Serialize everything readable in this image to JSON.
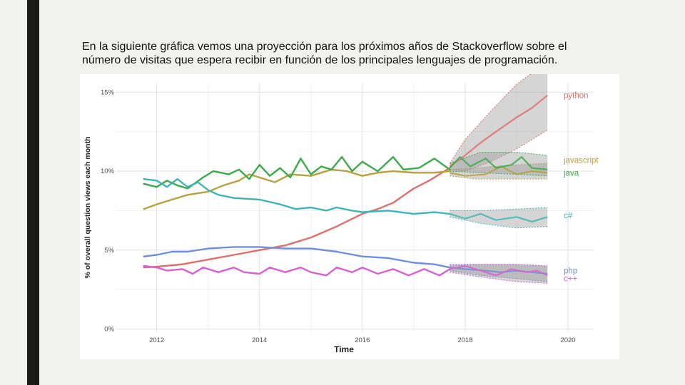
{
  "slide": {
    "text": "En la siguiente gráfica vemos una proyección para los próximos años de Stackoverflow sobre el número de visitas que espera recibir en función de los principales lenguajes de programación."
  },
  "chart_data": {
    "type": "line",
    "xlabel": "Time",
    "ylabel": "% of overall question views each month",
    "xlim": [
      2011.2,
      2020.5
    ],
    "ylim": [
      -0.2,
      15.6
    ],
    "x_ticks": [
      2012,
      2014,
      2016,
      2018,
      2020
    ],
    "x_tick_labels": [
      "2012",
      "2014",
      "2016",
      "2018",
      "2020"
    ],
    "y_ticks": [
      0,
      5,
      10,
      15
    ],
    "y_tick_labels": [
      "0%",
      "5%",
      "10%",
      "15%"
    ],
    "forecast_start": 2017.7,
    "series": [
      {
        "name": "python",
        "color": "#e06f6c",
        "points": [
          [
            2011.75,
            3.9
          ],
          [
            2012,
            3.95
          ],
          [
            2012.5,
            4.1
          ],
          [
            2013,
            4.4
          ],
          [
            2013.5,
            4.7
          ],
          [
            2014,
            5.0
          ],
          [
            2014.5,
            5.3
          ],
          [
            2015,
            5.8
          ],
          [
            2015.5,
            6.5
          ],
          [
            2016,
            7.3
          ],
          [
            2016.3,
            7.6
          ],
          [
            2016.6,
            8.0
          ],
          [
            2017,
            8.9
          ],
          [
            2017.3,
            9.4
          ],
          [
            2017.7,
            10.2
          ]
        ],
        "forecast": [
          [
            2017.7,
            10.3
          ],
          [
            2018,
            11.0
          ],
          [
            2018.3,
            11.8
          ],
          [
            2018.6,
            12.5
          ],
          [
            2019,
            13.4
          ],
          [
            2019.3,
            14.0
          ],
          [
            2019.6,
            14.8
          ]
        ],
        "band_low": [
          [
            2017.7,
            10.1
          ],
          [
            2018,
            10.0
          ],
          [
            2018.5,
            10.6
          ],
          [
            2019,
            11.4
          ],
          [
            2019.6,
            12.6
          ]
        ],
        "band_high": [
          [
            2017.7,
            10.5
          ],
          [
            2018,
            12.0
          ],
          [
            2018.5,
            13.8
          ],
          [
            2019,
            15.5
          ],
          [
            2019.6,
            16.9
          ]
        ]
      },
      {
        "name": "javascript",
        "color": "#b8a13e",
        "points": [
          [
            2011.75,
            7.6
          ],
          [
            2012,
            7.9
          ],
          [
            2012.3,
            8.2
          ],
          [
            2012.6,
            8.5
          ],
          [
            2013,
            8.7
          ],
          [
            2013.3,
            9.1
          ],
          [
            2013.6,
            9.4
          ],
          [
            2013.8,
            9.8
          ],
          [
            2014,
            9.6
          ],
          [
            2014.3,
            9.3
          ],
          [
            2014.6,
            9.8
          ],
          [
            2015,
            9.7
          ],
          [
            2015.4,
            10.1
          ],
          [
            2015.7,
            10.0
          ],
          [
            2016,
            9.7
          ],
          [
            2016.3,
            9.9
          ],
          [
            2016.6,
            10.0
          ],
          [
            2017,
            9.9
          ],
          [
            2017.4,
            9.9
          ],
          [
            2017.7,
            10.0
          ]
        ],
        "forecast": [
          [
            2017.7,
            9.9
          ],
          [
            2018,
            9.7
          ],
          [
            2018.4,
            9.8
          ],
          [
            2018.7,
            10.3
          ],
          [
            2019,
            9.8
          ],
          [
            2019.3,
            10.0
          ],
          [
            2019.6,
            9.9
          ]
        ],
        "band_low": [
          [
            2017.7,
            9.7
          ],
          [
            2018.2,
            9.5
          ],
          [
            2019,
            9.5
          ],
          [
            2019.6,
            9.5
          ]
        ],
        "band_high": [
          [
            2017.7,
            10.1
          ],
          [
            2018.2,
            10.2
          ],
          [
            2019,
            10.4
          ],
          [
            2019.6,
            10.5
          ]
        ]
      },
      {
        "name": "java",
        "color": "#3bab4a",
        "points": [
          [
            2011.75,
            9.2
          ],
          [
            2012,
            9.0
          ],
          [
            2012.2,
            9.4
          ],
          [
            2012.4,
            9.1
          ],
          [
            2012.6,
            8.9
          ],
          [
            2012.9,
            9.6
          ],
          [
            2013.1,
            10.0
          ],
          [
            2013.4,
            9.8
          ],
          [
            2013.6,
            10.1
          ],
          [
            2013.8,
            9.5
          ],
          [
            2014,
            10.4
          ],
          [
            2014.2,
            9.7
          ],
          [
            2014.4,
            10.2
          ],
          [
            2014.6,
            9.6
          ],
          [
            2014.8,
            10.8
          ],
          [
            2015,
            9.8
          ],
          [
            2015.2,
            10.3
          ],
          [
            2015.4,
            10.1
          ],
          [
            2015.6,
            10.9
          ],
          [
            2015.8,
            10.0
          ],
          [
            2016,
            10.6
          ],
          [
            2016.3,
            10.0
          ],
          [
            2016.6,
            10.9
          ],
          [
            2016.8,
            10.1
          ],
          [
            2017.1,
            10.2
          ],
          [
            2017.4,
            10.8
          ],
          [
            2017.7,
            10.1
          ]
        ],
        "forecast": [
          [
            2017.7,
            10.2
          ],
          [
            2017.9,
            10.9
          ],
          [
            2018.1,
            10.3
          ],
          [
            2018.4,
            10.8
          ],
          [
            2018.6,
            10.2
          ],
          [
            2018.9,
            10.4
          ],
          [
            2019.1,
            10.9
          ],
          [
            2019.3,
            10.2
          ],
          [
            2019.6,
            10.1
          ]
        ],
        "band_low": [
          [
            2017.7,
            10.0
          ],
          [
            2018.3,
            9.9
          ],
          [
            2019,
            9.8
          ],
          [
            2019.6,
            9.7
          ]
        ],
        "band_high": [
          [
            2017.7,
            10.5
          ],
          [
            2018.3,
            11.2
          ],
          [
            2019,
            11.2
          ],
          [
            2019.6,
            11.0
          ]
        ]
      },
      {
        "name": "c#",
        "color": "#3fb4b6",
        "points": [
          [
            2011.75,
            9.5
          ],
          [
            2012,
            9.4
          ],
          [
            2012.2,
            9.0
          ],
          [
            2012.4,
            9.5
          ],
          [
            2012.6,
            9.0
          ],
          [
            2012.8,
            9.3
          ],
          [
            2013,
            8.8
          ],
          [
            2013.2,
            8.5
          ],
          [
            2013.5,
            8.3
          ],
          [
            2014,
            8.2
          ],
          [
            2014.4,
            7.9
          ],
          [
            2014.7,
            7.6
          ],
          [
            2015,
            7.7
          ],
          [
            2015.3,
            7.5
          ],
          [
            2015.5,
            7.7
          ],
          [
            2015.8,
            7.5
          ],
          [
            2016,
            7.4
          ],
          [
            2016.5,
            7.5
          ],
          [
            2017,
            7.3
          ],
          [
            2017.4,
            7.4
          ],
          [
            2017.7,
            7.3
          ]
        ],
        "forecast": [
          [
            2017.7,
            7.3
          ],
          [
            2018,
            7.0
          ],
          [
            2018.3,
            7.3
          ],
          [
            2018.6,
            6.9
          ],
          [
            2019,
            7.1
          ],
          [
            2019.3,
            6.8
          ],
          [
            2019.6,
            7.1
          ]
        ],
        "band_low": [
          [
            2017.7,
            7.1
          ],
          [
            2018.3,
            6.7
          ],
          [
            2019,
            6.4
          ],
          [
            2019.6,
            6.5
          ]
        ],
        "band_high": [
          [
            2017.7,
            7.5
          ],
          [
            2018.3,
            7.5
          ],
          [
            2019,
            7.6
          ],
          [
            2019.6,
            7.7
          ]
        ]
      },
      {
        "name": "php",
        "color": "#6f8fdb",
        "points": [
          [
            2011.75,
            4.6
          ],
          [
            2012,
            4.7
          ],
          [
            2012.3,
            4.9
          ],
          [
            2012.6,
            4.9
          ],
          [
            2013,
            5.1
          ],
          [
            2013.5,
            5.2
          ],
          [
            2014,
            5.2
          ],
          [
            2014.5,
            5.1
          ],
          [
            2015,
            5.1
          ],
          [
            2015.5,
            4.9
          ],
          [
            2016,
            4.6
          ],
          [
            2016.5,
            4.5
          ],
          [
            2017,
            4.2
          ],
          [
            2017.4,
            4.1
          ],
          [
            2017.7,
            3.9
          ]
        ],
        "forecast": [
          [
            2017.7,
            3.9
          ],
          [
            2018,
            3.8
          ],
          [
            2018.4,
            3.7
          ],
          [
            2018.7,
            3.6
          ],
          [
            2019,
            3.7
          ],
          [
            2019.3,
            3.6
          ],
          [
            2019.6,
            3.5
          ]
        ],
        "band_low": [
          [
            2017.7,
            3.7
          ],
          [
            2018.3,
            3.4
          ],
          [
            2019,
            3.2
          ],
          [
            2019.6,
            3.0
          ]
        ],
        "band_high": [
          [
            2017.7,
            4.1
          ],
          [
            2018.3,
            4.1
          ],
          [
            2019,
            4.1
          ],
          [
            2019.6,
            4.0
          ]
        ]
      },
      {
        "name": "c++",
        "color": "#d95fd3",
        "points": [
          [
            2011.75,
            4.0
          ],
          [
            2012,
            3.9
          ],
          [
            2012.2,
            3.7
          ],
          [
            2012.5,
            3.8
          ],
          [
            2012.7,
            3.5
          ],
          [
            2012.9,
            3.9
          ],
          [
            2013.2,
            3.6
          ],
          [
            2013.5,
            3.9
          ],
          [
            2013.7,
            3.6
          ],
          [
            2014,
            3.5
          ],
          [
            2014.2,
            3.9
          ],
          [
            2014.5,
            3.6
          ],
          [
            2014.8,
            3.9
          ],
          [
            2015,
            3.6
          ],
          [
            2015.3,
            3.4
          ],
          [
            2015.5,
            3.9
          ],
          [
            2015.8,
            3.6
          ],
          [
            2016,
            3.9
          ],
          [
            2016.3,
            3.5
          ],
          [
            2016.6,
            3.8
          ],
          [
            2016.9,
            3.4
          ],
          [
            2017.2,
            3.8
          ],
          [
            2017.5,
            3.4
          ],
          [
            2017.7,
            3.8
          ]
        ],
        "forecast": [
          [
            2017.7,
            3.8
          ],
          [
            2018,
            4.0
          ],
          [
            2018.3,
            3.7
          ],
          [
            2018.6,
            3.4
          ],
          [
            2018.9,
            3.8
          ],
          [
            2019.2,
            3.6
          ],
          [
            2019.4,
            3.7
          ],
          [
            2019.6,
            3.4
          ]
        ],
        "band_low": [
          [
            2017.7,
            3.6
          ],
          [
            2018.3,
            3.3
          ],
          [
            2019,
            3.0
          ],
          [
            2019.6,
            2.9
          ]
        ],
        "band_high": [
          [
            2017.7,
            4.0
          ],
          [
            2018.3,
            4.1
          ],
          [
            2019,
            4.1
          ],
          [
            2019.6,
            4.0
          ]
        ]
      }
    ],
    "legend_labels": [
      {
        "name": "python",
        "color": "#e06f6c",
        "y": 14.8
      },
      {
        "name": "javascript",
        "color": "#b8a13e",
        "y": 10.7
      },
      {
        "name": "java",
        "color": "#3bab4a",
        "y": 9.9
      },
      {
        "name": "c#",
        "color": "#3fb4b6",
        "y": 7.2
      },
      {
        "name": "php",
        "color": "#6f8fdb",
        "y": 3.7
      },
      {
        "name": "c++",
        "color": "#d95fd3",
        "y": 3.2
      }
    ]
  }
}
